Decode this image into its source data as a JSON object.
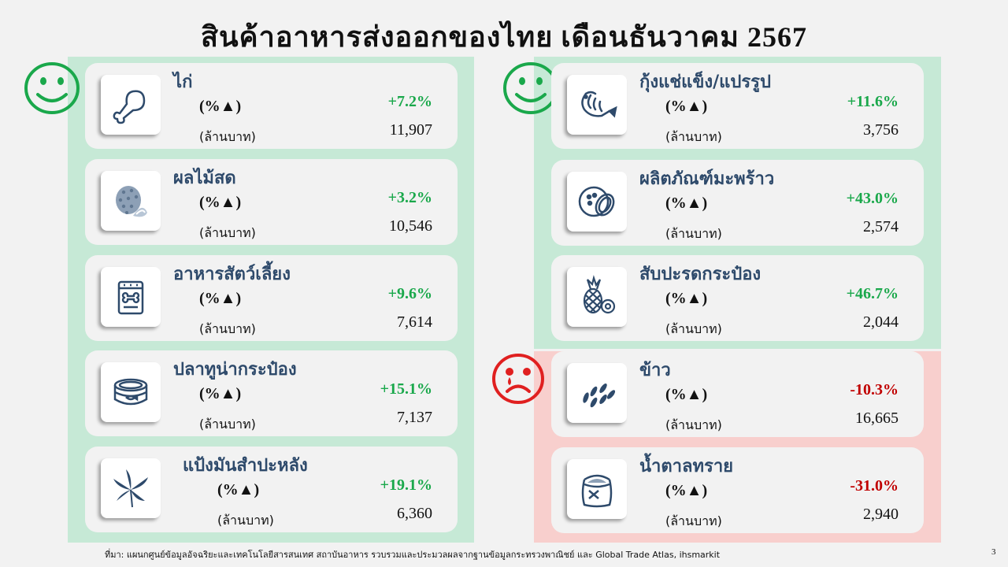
{
  "title": "สินค้าอาหารส่งออกของไทย เดือนธันวาคม 2567",
  "pct_label": "(%▲)",
  "unit_label": "(ล้านบาท)",
  "colors": {
    "up": "#1aa84b",
    "down": "#c00000",
    "icon": "#2e4a6b"
  },
  "left_cards": [
    {
      "name": "ไก่",
      "pct": "+7.2%",
      "value": "11,907",
      "icon": "chicken-leg-icon"
    },
    {
      "name": "ผลไม้สด",
      "pct": "+3.2%",
      "value": "10,546",
      "icon": "durian-icon"
    },
    {
      "name": "อาหารสัตว์เลี้ยง",
      "pct": "+9.6%",
      "value": "7,614",
      "icon": "pet-food-bag-icon"
    },
    {
      "name": "ปลาทูน่ากระป๋อง",
      "pct": "+15.1%",
      "value": "7,137",
      "icon": "tuna-can-icon"
    },
    {
      "name": "แป้งมันสำปะหลัง",
      "pct": "+19.1%",
      "value": "6,360",
      "icon": "cassava-leaf-icon"
    }
  ],
  "right_up_cards": [
    {
      "name": "กุ้งแช่แข็ง/แปรรูป",
      "pct": "+11.6%",
      "value": "3,756",
      "icon": "shrimp-icon"
    },
    {
      "name": "ผลิตภัณฑ์มะพร้าว",
      "pct": "+43.0%",
      "value": "2,574",
      "icon": "coconut-icon"
    },
    {
      "name": "สับปะรดกระป๋อง",
      "pct": "+46.7%",
      "value": "2,044",
      "icon": "pineapple-icon"
    }
  ],
  "right_down_cards": [
    {
      "name": "ข้าว",
      "pct": "-10.3%",
      "value": "16,665",
      "icon": "rice-grains-icon"
    },
    {
      "name": "น้ำตาลทราย",
      "pct": "-31.0%",
      "value": "2,940",
      "icon": "sugar-sack-icon"
    }
  ],
  "footnote": "ที่มา: แผนกศูนย์ข้อมูลอัจฉริยะและเทคโนโลยีสารสนเทศ สถาบันอาหาร รวบรวมและประมวลผลจากฐานข้อมูลกระทรวงพาณิชย์ และ Global Trade Atlas, ihsmarkit",
  "page_number": "3"
}
